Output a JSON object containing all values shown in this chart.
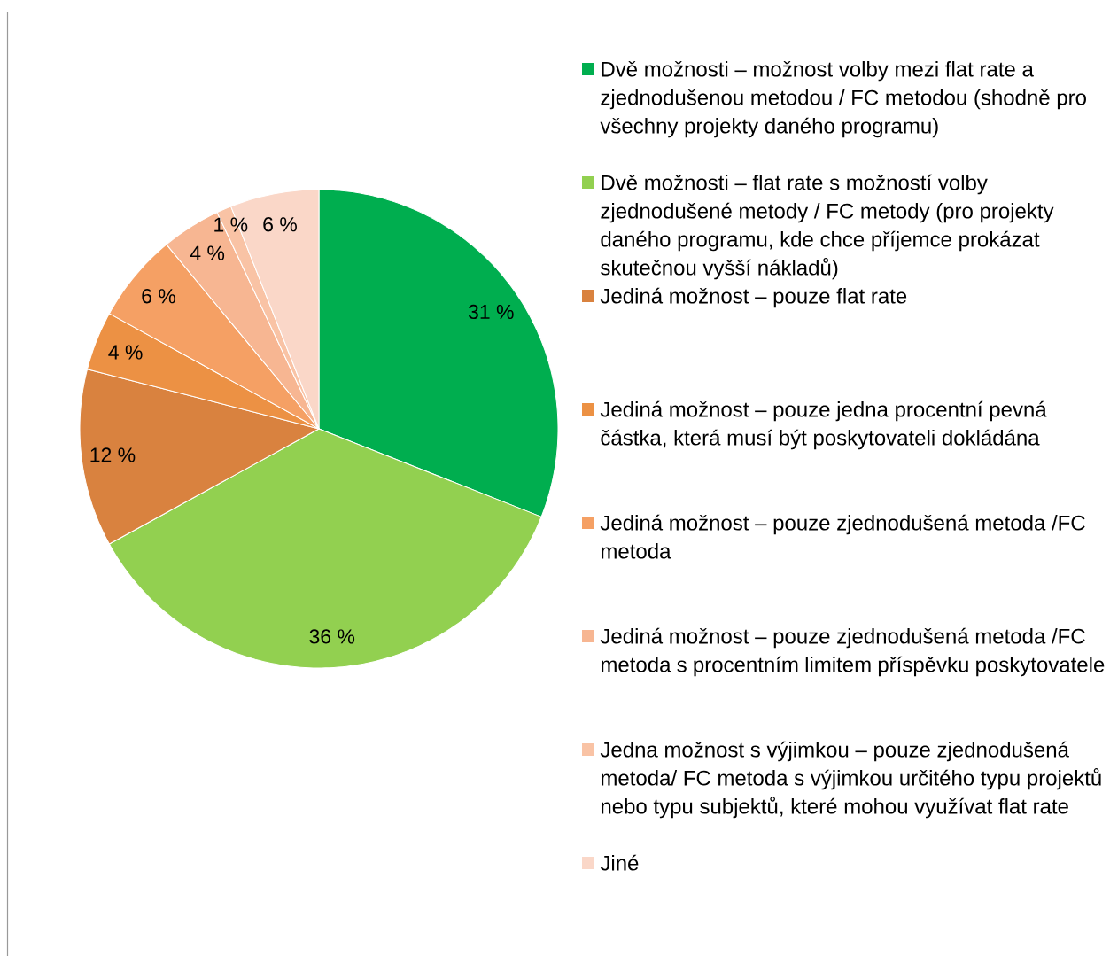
{
  "chart_data": {
    "type": "pie",
    "categories": [
      "Dvě možnosti – možnost volby mezi flat rate a zjednodušenou metodou / FC metodou (shodně pro všechny projekty daného programu)",
      "Dvě možnosti – flat rate s možností volby zjednodušené metody / FC metody (pro projekty daného programu, kde chce příjemce prokázat skutečnou vyšší nákladů)",
      "Jediná možnost – pouze flat rate",
      "Jediná možnost – pouze jedna procentní pevná částka, která musí být poskytovateli dokládána",
      "Jediná možnost – pouze zjednodušená metoda /FC metoda",
      "Jediná možnost – pouze zjednodušená metoda /FC metoda s procentním limitem příspěvku poskytovatele",
      "Jedna možnost s výjimkou – pouze zjednodušená metoda/ FC metoda s výjimkou určitého typu projektů nebo typu subjektů, které mohou využívat flat rate",
      "Jiné"
    ],
    "values": [
      31,
      36,
      12,
      4,
      6,
      4,
      1,
      6
    ],
    "colors": [
      "#00ae4f",
      "#92d050",
      "#d9823f",
      "#ec9144",
      "#f5a064",
      "#f7b692",
      "#f9c3a5",
      "#fad7c8"
    ],
    "value_labels": [
      "31 %",
      "36 %",
      "12 %",
      "4 %",
      "6 %",
      "4 %",
      "1 %",
      "6 %"
    ],
    "legend": "right"
  }
}
